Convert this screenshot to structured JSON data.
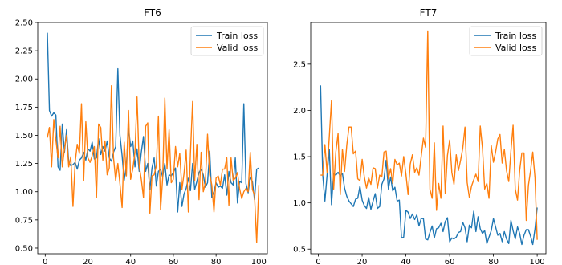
{
  "chart_data": [
    {
      "type": "line",
      "title": "FT6",
      "xlabel": "",
      "ylabel": "",
      "xlim": [
        -3.5,
        104
      ],
      "ylim": [
        0.45,
        2.5
      ],
      "xticks": [
        0,
        20,
        40,
        60,
        80,
        100
      ],
      "yticks": [
        0.5,
        0.75,
        1.0,
        1.25,
        1.5,
        1.75,
        2.0,
        2.25,
        2.5
      ],
      "ytick_labels": [
        "0.50",
        "0.75",
        "1.00",
        "1.25",
        "1.50",
        "1.75",
        "2.00",
        "2.25",
        "2.50"
      ],
      "legend": "top-right",
      "grid": false,
      "x": [
        1,
        2,
        3,
        4,
        5,
        6,
        7,
        8,
        9,
        10,
        11,
        12,
        13,
        14,
        15,
        16,
        17,
        18,
        19,
        20,
        21,
        22,
        23,
        24,
        25,
        26,
        27,
        28,
        29,
        30,
        31,
        32,
        33,
        34,
        35,
        36,
        37,
        38,
        39,
        40,
        41,
        42,
        43,
        44,
        45,
        46,
        47,
        48,
        49,
        50,
        51,
        52,
        53,
        54,
        55,
        56,
        57,
        58,
        59,
        60,
        61,
        62,
        63,
        64,
        65,
        66,
        67,
        68,
        69,
        70,
        71,
        72,
        73,
        74,
        75,
        76,
        77,
        78,
        79,
        80,
        81,
        82,
        83,
        84,
        85,
        86,
        87,
        88,
        89,
        90,
        91,
        92,
        93,
        94,
        95,
        96,
        97,
        98,
        99,
        100
      ],
      "series": [
        {
          "name": "Train loss",
          "color": "#1f77b4",
          "values": [
            2.41,
            1.72,
            1.67,
            1.7,
            1.68,
            1.22,
            1.19,
            1.6,
            1.35,
            1.55,
            1.26,
            1.23,
            1.24,
            1.26,
            1.2,
            1.28,
            1.3,
            1.35,
            1.28,
            1.38,
            1.36,
            1.44,
            1.29,
            1.3,
            1.47,
            1.33,
            1.4,
            1.36,
            1.45,
            1.3,
            1.27,
            1.35,
            1.4,
            2.09,
            1.5,
            1.32,
            1.1,
            1.23,
            1.56,
            1.4,
            1.45,
            1.22,
            1.38,
            1.18,
            1.35,
            1.49,
            1.18,
            1.25,
            1.02,
            1.21,
            1.3,
            1.05,
            1.18,
            1.2,
            1.13,
            1.25,
            1.06,
            1.15,
            1.14,
            1.17,
            1.21,
            0.82,
            1.08,
            0.87,
            0.98,
            1.03,
            1.12,
            1.01,
            1.25,
            1.02,
            1.09,
            1.17,
            1.2,
            1.15,
            1.04,
            1.08,
            1.36,
            0.95,
            1.0,
            1.08,
            1.04,
            1.05,
            1.03,
            1.15,
            0.97,
            1.18,
            1.08,
            1.06,
            1.3,
            0.9,
            1.09,
            1.08,
            1.78,
            1.07,
            0.99,
            1.13,
            1.09,
            0.93,
            1.2,
            1.21
          ]
        },
        {
          "name": "Valid loss",
          "color": "#ff7f0e",
          "values": [
            1.48,
            1.57,
            1.22,
            1.64,
            1.46,
            1.3,
            1.58,
            1.22,
            1.38,
            1.5,
            1.22,
            1.31,
            0.87,
            1.26,
            1.42,
            1.34,
            1.78,
            1.1,
            1.62,
            1.3,
            1.26,
            1.32,
            1.4,
            0.95,
            1.6,
            1.57,
            1.28,
            1.45,
            1.15,
            1.21,
            1.94,
            1.3,
            1.1,
            1.25,
            1.07,
            0.86,
            1.44,
            1.14,
            1.72,
            1.11,
            1.2,
            1.35,
            1.84,
            1.23,
            1.11,
            0.95,
            1.58,
            1.61,
            0.81,
            1.14,
            1.15,
            1.23,
            1.67,
            0.84,
            1.12,
            1.83,
            1.2,
            1.55,
            1.08,
            1.11,
            1.4,
            1.22,
            1.34,
            1.02,
            1.16,
            1.37,
            0.82,
            1.34,
            1.8,
            1.1,
            1.42,
            0.93,
            1.35,
            1.0,
            1.08,
            1.51,
            1.15,
            1.06,
            0.82,
            1.12,
            1.14,
            1.06,
            1.2,
            1.2,
            1.3,
            0.88,
            1.3,
            1.1,
            1.12,
            1.17,
            1.03,
            0.94,
            1.0,
            1.03,
            1.0,
            1.35,
            1.02,
            0.97,
            0.55,
            1.06
          ]
        }
      ]
    },
    {
      "type": "line",
      "title": "FT7",
      "xlabel": "",
      "ylabel": "",
      "xlim": [
        -3.5,
        104
      ],
      "ylim": [
        0.45,
        2.95
      ],
      "xticks": [
        0,
        20,
        40,
        60,
        80,
        100
      ],
      "yticks": [
        0.5,
        1.0,
        1.5,
        2.0,
        2.5
      ],
      "ytick_labels": [
        "0.5",
        "1.0",
        "1.5",
        "2.0",
        "2.5"
      ],
      "legend": "top-right",
      "grid": false,
      "x": [
        1,
        2,
        3,
        4,
        5,
        6,
        7,
        8,
        9,
        10,
        11,
        12,
        13,
        14,
        15,
        16,
        17,
        18,
        19,
        20,
        21,
        22,
        23,
        24,
        25,
        26,
        27,
        28,
        29,
        30,
        31,
        32,
        33,
        34,
        35,
        36,
        37,
        38,
        39,
        40,
        41,
        42,
        43,
        44,
        45,
        46,
        47,
        48,
        49,
        50,
        51,
        52,
        53,
        54,
        55,
        56,
        57,
        58,
        59,
        60,
        61,
        62,
        63,
        64,
        65,
        66,
        67,
        68,
        69,
        70,
        71,
        72,
        73,
        74,
        75,
        76,
        77,
        78,
        79,
        80,
        81,
        82,
        83,
        84,
        85,
        86,
        87,
        88,
        89,
        90,
        91,
        92,
        93,
        94,
        95,
        96,
        97,
        98,
        99,
        100
      ],
      "series": [
        {
          "name": "Train loss",
          "color": "#1f77b4",
          "values": [
            2.27,
            1.3,
            1.02,
            1.3,
            1.58,
            0.98,
            1.32,
            1.3,
            1.33,
            1.29,
            1.32,
            1.16,
            1.07,
            1.02,
            0.99,
            0.96,
            1.04,
            1.05,
            1.18,
            1.03,
            0.97,
            0.94,
            1.06,
            0.93,
            1.02,
            1.1,
            0.94,
            0.96,
            1.2,
            1.26,
            1.46,
            1.15,
            1.28,
            1.13,
            1.17,
            1.02,
            1.03,
            0.62,
            0.63,
            0.92,
            0.9,
            0.83,
            0.88,
            0.82,
            0.87,
            0.75,
            0.83,
            0.83,
            0.61,
            0.6,
            0.68,
            0.75,
            0.62,
            0.72,
            0.73,
            0.78,
            0.69,
            0.8,
            0.84,
            0.58,
            0.62,
            0.61,
            0.63,
            0.68,
            0.69,
            0.79,
            0.73,
            0.58,
            0.76,
            0.73,
            0.91,
            0.69,
            0.85,
            0.72,
            0.67,
            0.7,
            0.56,
            0.63,
            0.7,
            0.83,
            0.74,
            0.65,
            0.67,
            0.58,
            0.69,
            0.61,
            0.56,
            0.81,
            0.7,
            0.61,
            0.74,
            0.67,
            0.55,
            0.65,
            0.71,
            0.71,
            0.64,
            0.55,
            0.72,
            0.95
          ]
        },
        {
          "name": "Valid loss",
          "color": "#ff7f0e",
          "values": [
            1.3,
            1.3,
            1.63,
            1.33,
            1.72,
            2.11,
            1.15,
            1.55,
            1.75,
            1.09,
            1.58,
            1.34,
            1.63,
            1.82,
            1.82,
            1.53,
            1.56,
            1.26,
            1.24,
            1.47,
            1.28,
            1.16,
            1.27,
            1.2,
            1.38,
            1.37,
            1.16,
            1.3,
            1.28,
            1.55,
            1.56,
            1.26,
            1.37,
            1.21,
            1.47,
            1.41,
            1.43,
            1.29,
            1.5,
            1.31,
            1.09,
            1.42,
            1.52,
            1.33,
            1.38,
            1.3,
            1.5,
            1.7,
            1.6,
            2.86,
            1.15,
            1.05,
            1.65,
            0.92,
            1.21,
            1.05,
            1.83,
            1.1,
            1.51,
            1.68,
            1.33,
            1.2,
            1.52,
            1.35,
            1.46,
            1.59,
            1.82,
            1.22,
            1.06,
            1.18,
            1.25,
            1.31,
            1.23,
            1.83,
            1.59,
            1.15,
            1.21,
            1.05,
            1.62,
            1.44,
            1.55,
            1.69,
            1.74,
            1.43,
            1.58,
            1.35,
            1.23,
            1.56,
            1.84,
            1.15,
            1.03,
            1.35,
            1.54,
            1.54,
            0.81,
            1.19,
            1.35,
            1.55,
            1.27,
            0.6
          ]
        }
      ]
    }
  ]
}
